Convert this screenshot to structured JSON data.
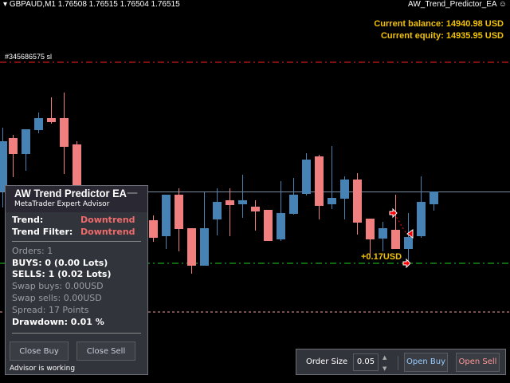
{
  "header": {
    "symbol_info": "GBPAUD,M1  1.76508 1.76515 1.76504 1.76515",
    "ea_name": "AW_Trend_Predictor_EA",
    "smiley_icon": "smiley-icon"
  },
  "account": {
    "balance": "Current balance: 14940.98 USD",
    "equity": "Current equity: 14935.95 USD"
  },
  "chart": {
    "sl_label": "#345686575 sl",
    "profit_label": "+0.17USD",
    "colors": {
      "bull": "#4682b4",
      "bear": "#f08080",
      "sl": "#ff2020",
      "tp": "#20d020"
    }
  },
  "panel": {
    "title": "AW Trend Predictor EA",
    "subtitle": "MetaTrader Expert Advisor",
    "minimize": "—",
    "trend_label": "Trend:",
    "trend_value": "Downtrend",
    "filter_label": "Trend Filter:",
    "filter_value": "Downtrend",
    "orders": "Orders: 1",
    "buys": "BUYS: 0 (0.00 Lots)",
    "sells": "SELLS: 1 (0.02 Lots)",
    "swap_buys": "Swap buys: 0.00USD",
    "swap_sells": "Swap sells: 0.00USD",
    "spread": "Spread: 17 Points",
    "drawdown": "Drawdown: 0.01 %",
    "close_buy": "Close Buy",
    "close_sell": "Close Sell",
    "status": "Advisor is working"
  },
  "order_bar": {
    "label": "Order Size",
    "value": "0.05",
    "up": "▲",
    "down": "▼",
    "open_buy": "Open Buy",
    "open_sell": "Open Sell"
  }
}
